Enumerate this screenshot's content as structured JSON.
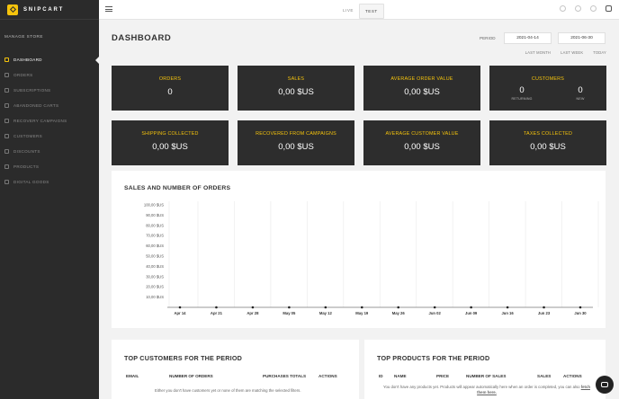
{
  "app": {
    "brand": "SNIPCART"
  },
  "sidebar": {
    "section_title": "MANAGE STORE",
    "items": [
      {
        "label": "DASHBOARD",
        "icon": "bar-chart-icon",
        "active": true
      },
      {
        "label": "ORDERS",
        "icon": "orders-icon"
      },
      {
        "label": "SUBSCRIPTIONS",
        "icon": "subscriptions-icon"
      },
      {
        "label": "ABANDONED CARTS",
        "icon": "cart-icon"
      },
      {
        "label": "RECOVERY CAMPAIGNS",
        "icon": "recovery-icon"
      },
      {
        "label": "CUSTOMERS",
        "icon": "user-icon"
      },
      {
        "label": "DISCOUNTS",
        "icon": "discount-icon"
      },
      {
        "label": "PRODUCTS",
        "icon": "tag-icon"
      },
      {
        "label": "DIGITAL GOODS",
        "icon": "globe-icon"
      }
    ]
  },
  "topbar": {
    "mode_live": "LIVE",
    "mode_test": "TEST"
  },
  "dashboard": {
    "title": "DASHBOARD",
    "period_label": "PERIOD",
    "date_start": "2021-04-14",
    "date_end": "2021-06-30",
    "quick_links": [
      "LAST MONTH",
      "LAST WEEK",
      "TODAY"
    ]
  },
  "stats": {
    "orders": {
      "label": "ORDERS",
      "value": "0"
    },
    "sales": {
      "label": "SALES",
      "value": "0,00 $US"
    },
    "aov": {
      "label": "AVERAGE ORDER VALUE",
      "value": "0,00 $US"
    },
    "customers": {
      "label": "CUSTOMERS",
      "returning": "0",
      "returning_label": "RETURNING",
      "new": "0",
      "new_label": "NEW"
    },
    "shipping": {
      "label": "SHIPPING COLLECTED",
      "value": "0,00 $US"
    },
    "recovered": {
      "label": "RECOVERED FROM CAMPAIGNS",
      "value": "0,00 $US"
    },
    "acv": {
      "label": "AVERAGE CUSTOMER VALUE",
      "value": "0,00 $US"
    },
    "taxes": {
      "label": "TAXES COLLECTED",
      "value": "0,00 $US"
    }
  },
  "chart_data": {
    "type": "line",
    "title": "SALES AND NUMBER OF ORDERS",
    "categories": [
      "Apr 14",
      "Apr 21",
      "Apr 28",
      "May 05",
      "May 12",
      "May 19",
      "May 26",
      "Jun 02",
      "Jun 09",
      "Jun 16",
      "Jun 23",
      "Jun 30"
    ],
    "y_ticks": [
      "10,00 $US",
      "20,00 $US",
      "30,00 $US",
      "40,00 $US",
      "50,00 $US",
      "60,00 $US",
      "70,00 $US",
      "80,00 $US",
      "90,00 $US",
      "100,00 $US"
    ],
    "ylim": [
      0,
      100
    ],
    "series": [
      {
        "values": [
          0,
          0,
          0,
          0,
          0,
          0,
          0,
          0,
          0,
          0,
          0,
          0
        ]
      }
    ],
    "grid": "vertical"
  },
  "top_customers": {
    "title": "TOP CUSTOMERS FOR THE PERIOD",
    "columns": [
      "EMAIL",
      "NUMBER OF ORDERS",
      "PURCHASES TOTALS",
      "ACTIONS"
    ],
    "empty_message": "Either you don't have customers yet or none of them are matching the selected filters."
  },
  "top_products": {
    "title": "TOP PRODUCTS FOR THE PERIOD",
    "columns": [
      "ID",
      "NAME",
      "PRICE",
      "NUMBER OF SALES",
      "SALES",
      "ACTIONS"
    ],
    "empty_message": "You don't have any products yet. Products will appear automatically here when an order is completed, you can also",
    "empty_link": "fetch them here."
  },
  "colors": {
    "accent": "#f5c30c",
    "sidebar_bg": "#2b2b2b",
    "card_bg": "#2d2d2d"
  }
}
